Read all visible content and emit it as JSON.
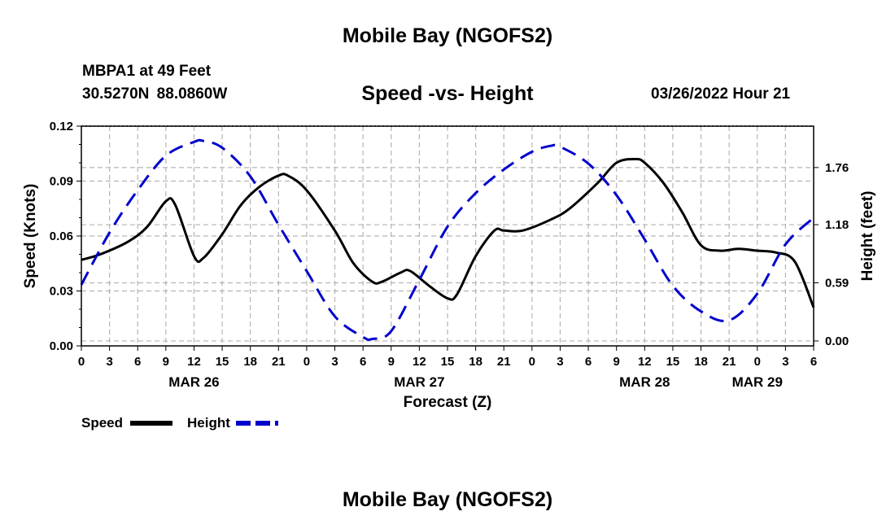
{
  "page": {
    "title_top": "Mobile Bay (NGOFS2)",
    "title_bottom": "Mobile Bay (NGOFS2)",
    "station_line": "MBPA1 at 49 Feet",
    "coords_line": "30.5270N  88.0860W",
    "subtitle": "Speed -vs- Height",
    "datetime": "03/26/2022 Hour 21"
  },
  "chart_data": {
    "type": "line",
    "xlabel": "Forecast (Z)",
    "ylabel": "Speed (Knots)",
    "y2label": "Height (feet)",
    "x_tick_labels": [
      "0",
      "3",
      "6",
      "9",
      "12",
      "15",
      "18",
      "21",
      "0",
      "3",
      "6",
      "9",
      "12",
      "15",
      "18",
      "21",
      "0",
      "3",
      "6",
      "9",
      "12",
      "15",
      "18",
      "21",
      "0",
      "3",
      "6"
    ],
    "date_labels": [
      {
        "text": "MAR 26",
        "hour": 12
      },
      {
        "text": "MAR 27",
        "hour": 36
      },
      {
        "text": "MAR 28",
        "hour": 60
      },
      {
        "text": "MAR 29",
        "hour": 72
      }
    ],
    "xlim": [
      0,
      78
    ],
    "ylim": [
      0,
      0.12
    ],
    "y_ticks": [
      "0.00",
      "0.03",
      "0.06",
      "0.09",
      "0.12"
    ],
    "y2lim": [
      -0.05,
      2.18
    ],
    "y2_ticks": [
      "0.00",
      "0.59",
      "1.18",
      "1.76"
    ],
    "grid": true,
    "legend": [
      {
        "label": "Speed",
        "color": "#000000",
        "style": "solid"
      },
      {
        "label": "Height",
        "color": "#0000cc",
        "style": "dashed"
      }
    ],
    "series": [
      {
        "name": "Speed",
        "axis": "left",
        "color": "#000000",
        "x": [
          0,
          2,
          5,
          7,
          9,
          10,
          12,
          13,
          15,
          17,
          19,
          21,
          22,
          24,
          27,
          29,
          31,
          32,
          34,
          35,
          37,
          39,
          40,
          42,
          44,
          45,
          47,
          50,
          52,
          55,
          57,
          59,
          60,
          62,
          64,
          66,
          68,
          70,
          72,
          74,
          76,
          78
        ],
        "values": [
          0.047,
          0.05,
          0.057,
          0.065,
          0.079,
          0.077,
          0.049,
          0.048,
          0.061,
          0.077,
          0.087,
          0.093,
          0.093,
          0.085,
          0.063,
          0.045,
          0.035,
          0.035,
          0.04,
          0.041,
          0.033,
          0.026,
          0.028,
          0.049,
          0.063,
          0.063,
          0.063,
          0.069,
          0.075,
          0.089,
          0.1,
          0.102,
          0.1,
          0.089,
          0.073,
          0.055,
          0.052,
          0.053,
          0.052,
          0.051,
          0.046,
          0.021
        ]
      },
      {
        "name": "Height",
        "axis": "right",
        "color": "#0000cc",
        "dashed": true,
        "x": [
          0,
          3,
          6,
          9,
          12,
          13,
          15,
          18,
          21,
          24,
          27,
          30,
          31,
          33,
          36,
          39,
          42,
          45,
          48,
          50,
          51,
          54,
          57,
          60,
          63,
          66,
          69,
          72,
          75,
          78
        ],
        "values": [
          0.57,
          1.1,
          1.53,
          1.88,
          2.02,
          2.03,
          1.96,
          1.67,
          1.18,
          0.71,
          0.25,
          0.04,
          0.02,
          0.1,
          0.62,
          1.16,
          1.5,
          1.74,
          1.92,
          1.98,
          1.97,
          1.8,
          1.48,
          1.03,
          0.56,
          0.3,
          0.21,
          0.48,
          0.98,
          1.25
        ]
      }
    ]
  }
}
